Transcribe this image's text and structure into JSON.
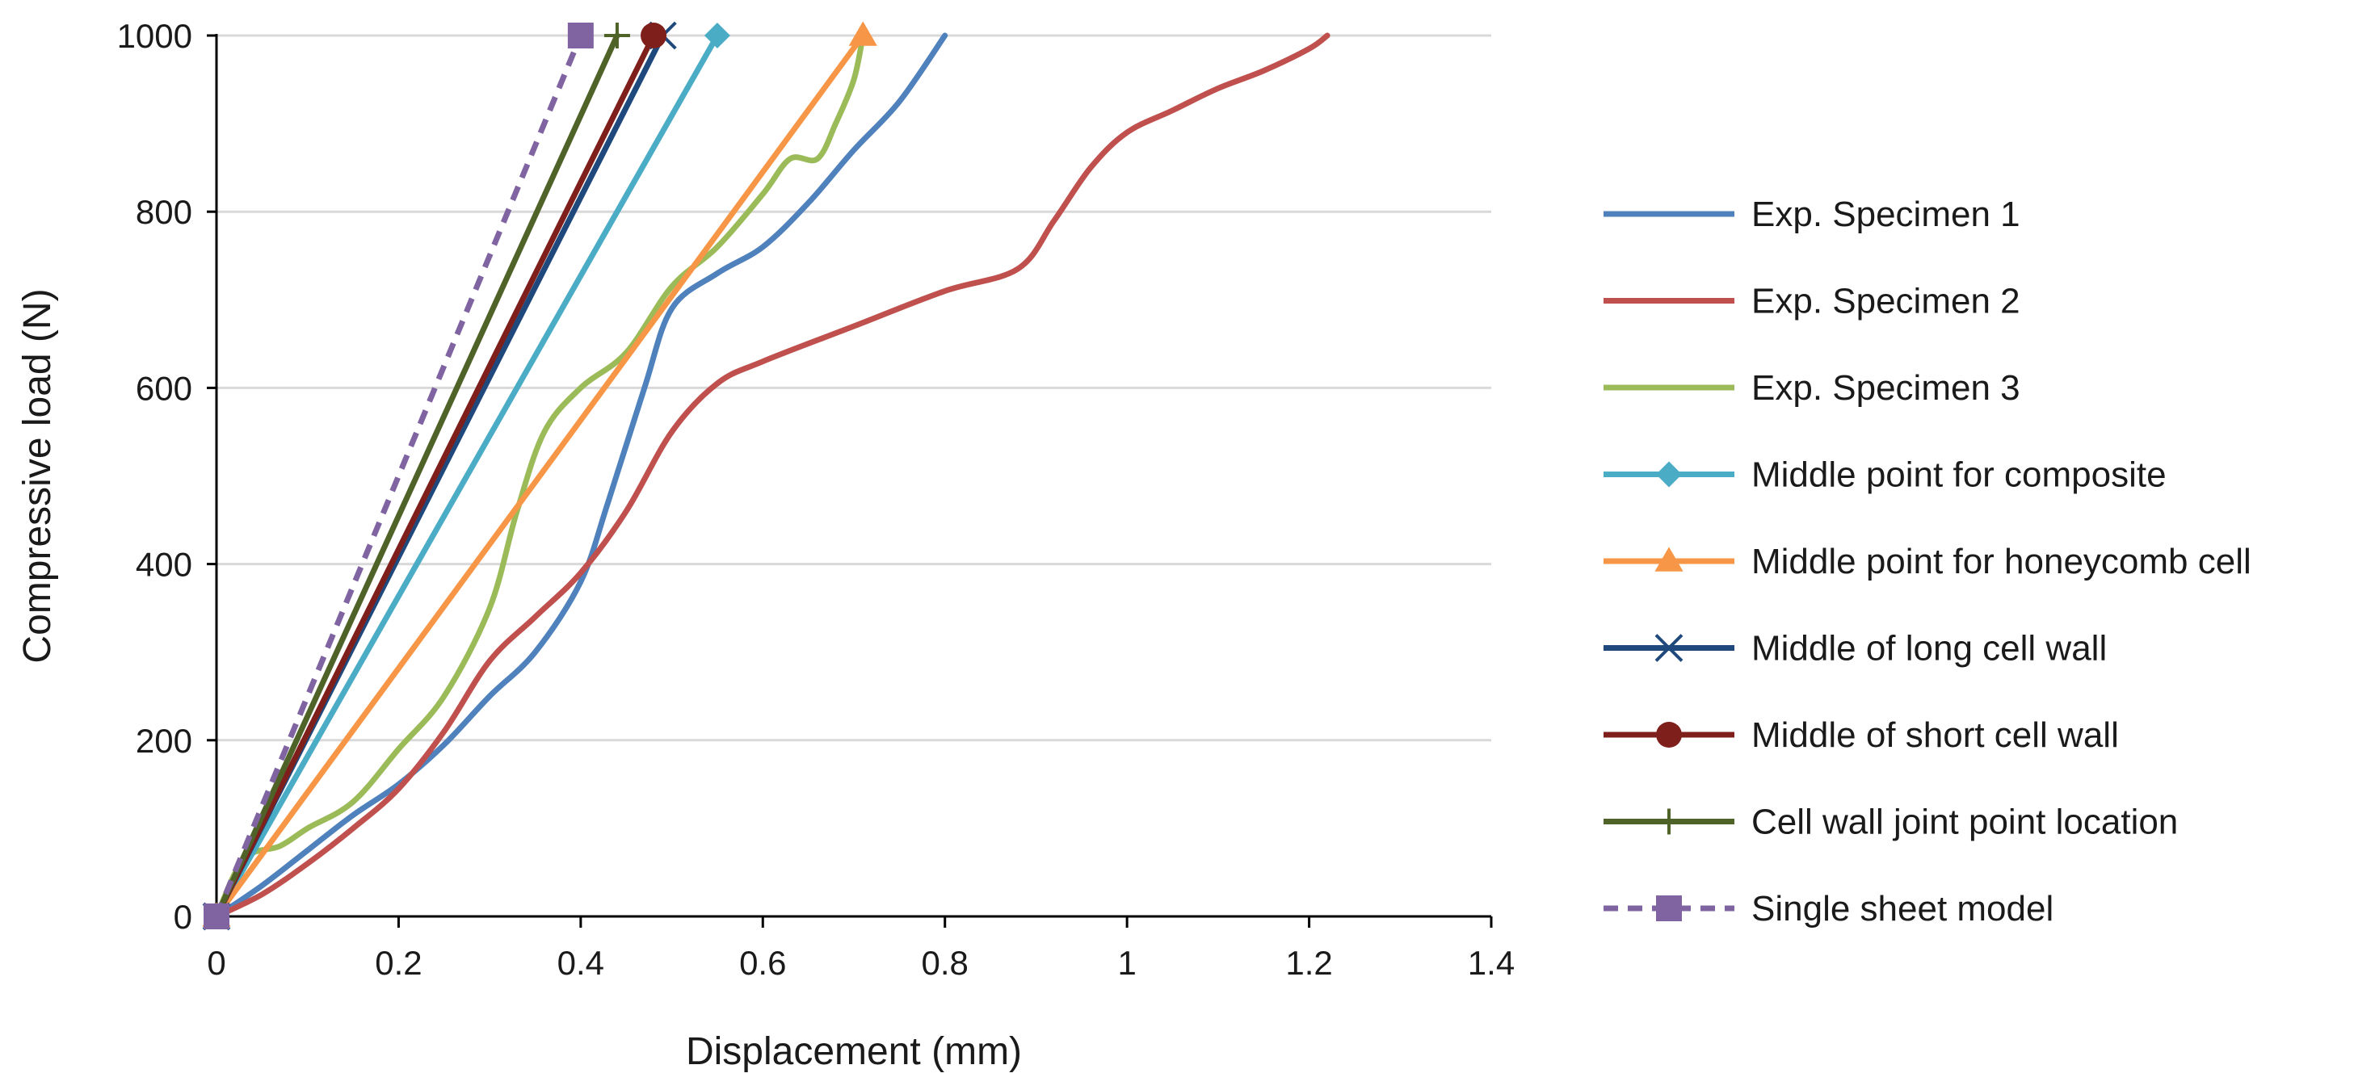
{
  "chart_data": {
    "type": "line",
    "title": "",
    "xlabel": "Displacement (mm)",
    "ylabel": "Compressive load (N)",
    "xlim": [
      0,
      1.4
    ],
    "ylim": [
      0,
      1000
    ],
    "xticks": [
      0,
      0.2,
      0.4,
      0.6,
      0.8,
      1.0,
      1.2,
      1.4
    ],
    "xtick_labels": [
      "0",
      "0.2",
      "0.4",
      "0.6",
      "0.8",
      "1",
      "1.2",
      "1.4"
    ],
    "yticks": [
      0,
      200,
      400,
      600,
      800,
      1000
    ],
    "ytick_labels": [
      "0",
      "200",
      "400",
      "600",
      "800",
      "1000"
    ],
    "grid": "horizontal",
    "legend_position": "right",
    "series": [
      {
        "name": "Exp. Specimen 1",
        "color": "#4f81bd",
        "marker": "none",
        "dash": "solid",
        "x": [
          0,
          0.05,
          0.1,
          0.15,
          0.2,
          0.25,
          0.3,
          0.35,
          0.4,
          0.43,
          0.47,
          0.5,
          0.55,
          0.6,
          0.65,
          0.7,
          0.75,
          0.8
        ],
        "y": [
          0,
          35,
          75,
          115,
          150,
          195,
          250,
          300,
          380,
          470,
          600,
          690,
          730,
          760,
          810,
          870,
          925,
          1000
        ]
      },
      {
        "name": "Exp. Specimen 2",
        "color": "#c0504d",
        "marker": "none",
        "dash": "solid",
        "x": [
          0,
          0.05,
          0.1,
          0.15,
          0.2,
          0.25,
          0.3,
          0.35,
          0.4,
          0.45,
          0.5,
          0.55,
          0.6,
          0.7,
          0.8,
          0.88,
          0.92,
          0.96,
          1.0,
          1.05,
          1.1,
          1.15,
          1.2,
          1.22
        ],
        "y": [
          0,
          25,
          60,
          100,
          145,
          210,
          290,
          340,
          390,
          460,
          550,
          605,
          630,
          670,
          710,
          735,
          790,
          850,
          890,
          915,
          940,
          960,
          985,
          1000
        ]
      },
      {
        "name": "Exp. Specimen 3",
        "color": "#9bbb59",
        "marker": "none",
        "dash": "solid",
        "x": [
          0,
          0.03,
          0.07,
          0.1,
          0.15,
          0.2,
          0.25,
          0.3,
          0.33,
          0.36,
          0.4,
          0.45,
          0.5,
          0.55,
          0.6,
          0.63,
          0.66,
          0.68,
          0.7,
          0.71
        ],
        "y": [
          0,
          65,
          80,
          100,
          130,
          190,
          250,
          350,
          460,
          550,
          600,
          640,
          715,
          760,
          820,
          860,
          860,
          900,
          950,
          1000
        ]
      },
      {
        "name": "Middle point for composite",
        "color": "#4bacc6",
        "marker": "diamond",
        "dash": "solid",
        "x": [
          0,
          0.55
        ],
        "y": [
          0,
          1000
        ]
      },
      {
        "name": "Middle point for honeycomb cell",
        "color": "#f79646",
        "marker": "triangle",
        "dash": "solid",
        "x": [
          0,
          0.71
        ],
        "y": [
          0,
          1000
        ]
      },
      {
        "name": "Middle of long cell wall",
        "color": "#1f497d",
        "marker": "x",
        "dash": "solid",
        "x": [
          0,
          0.49
        ],
        "y": [
          0,
          1000
        ]
      },
      {
        "name": "Middle of short cell wall",
        "color": "#7f1f1c",
        "marker": "circle",
        "dash": "solid",
        "x": [
          0,
          0.48
        ],
        "y": [
          0,
          1000
        ]
      },
      {
        "name": "Cell wall joint point location",
        "color": "#4f6228",
        "marker": "plus",
        "dash": "solid",
        "x": [
          0,
          0.44
        ],
        "y": [
          0,
          1000
        ]
      },
      {
        "name": "Single sheet model",
        "color": "#8064a2",
        "marker": "square",
        "dash": "dashed",
        "x": [
          0,
          0.4
        ],
        "y": [
          0,
          1000
        ]
      }
    ]
  }
}
